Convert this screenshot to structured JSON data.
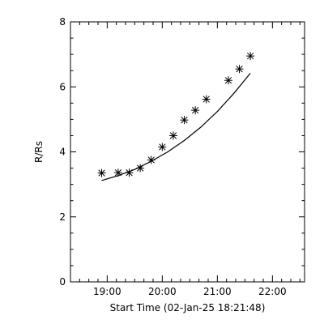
{
  "chart_data": {
    "type": "scatter",
    "xlabel": "Start Time (02-Jan-25 18:21:48)",
    "ylabel": "R/Rs",
    "xlim": [
      "18:20",
      "22:35"
    ],
    "ylim": [
      0,
      8
    ],
    "x_ticks": [
      "19:00",
      "20:00",
      "21:00",
      "22:00"
    ],
    "y_ticks": [
      0,
      2,
      4,
      6,
      8
    ],
    "grid": false,
    "legend": "none",
    "colors": {
      "axes": "#000000",
      "marks": "#000000",
      "background": "#ffffff"
    },
    "series": [
      {
        "marker": "asterisk",
        "x": [
          "18:54",
          "19:12",
          "19:24",
          "19:36",
          "19:48",
          "20:00",
          "20:12",
          "20:24",
          "20:36",
          "20:48",
          "21:12",
          "21:24",
          "21:36"
        ],
        "y": [
          3.35,
          3.36,
          3.36,
          3.5,
          3.75,
          4.15,
          4.5,
          4.98,
          5.28,
          5.62,
          6.2,
          6.55,
          6.95
        ]
      },
      {
        "marker": "none",
        "line": "solid",
        "x": [
          "18:54",
          "19:12",
          "19:30",
          "19:48",
          "20:06",
          "20:24",
          "20:42",
          "21:00",
          "21:18",
          "21:36"
        ],
        "y": [
          3.12,
          3.27,
          3.46,
          3.71,
          4.0,
          4.35,
          4.76,
          5.24,
          5.8,
          6.42
        ]
      }
    ]
  }
}
